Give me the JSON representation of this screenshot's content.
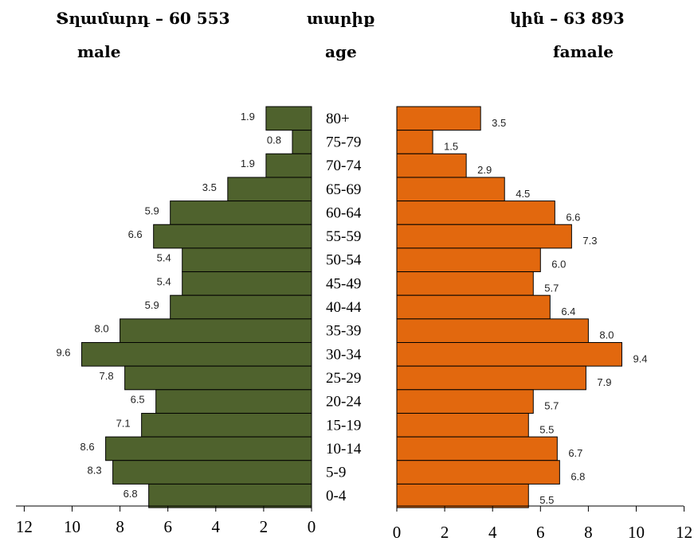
{
  "header": {
    "male_title": "Տղամարդ – 60 553",
    "age_title": "տարիք",
    "female_title": "կին – 63 893",
    "male_label": "male",
    "age_label": "age",
    "female_label": "famale"
  },
  "colors": {
    "male": "#4f622d",
    "female": "#e2680e"
  },
  "chart_data": {
    "type": "bar",
    "orientation": "horizontal",
    "categories": [
      "80+",
      "75-79",
      "70-74",
      "65-69",
      "60-64",
      "55-59",
      "50-54",
      "45-49",
      "40-44",
      "35-39",
      "30-34",
      "25-29",
      "20-24",
      "15-19",
      "10-14",
      "5-9",
      "0-4"
    ],
    "series": [
      {
        "name": "male",
        "values": [
          1.9,
          0.8,
          1.9,
          3.5,
          5.9,
          6.6,
          5.4,
          5.4,
          5.9,
          8.0,
          9.6,
          7.8,
          6.5,
          7.1,
          8.6,
          8.3,
          6.8
        ],
        "labels": [
          "1.9",
          "0.8",
          "1.9",
          "3.5",
          "5.9",
          "6.6",
          "5.4",
          "5.4",
          "5.9",
          "8.0",
          "9.6",
          "7.8",
          "6.5",
          "7.1",
          "8.6",
          "8.3",
          "6.8"
        ]
      },
      {
        "name": "famale",
        "values": [
          3.5,
          1.5,
          2.9,
          4.5,
          6.6,
          7.3,
          6.0,
          5.7,
          6.4,
          8.0,
          9.4,
          7.9,
          5.7,
          5.5,
          6.7,
          6.8,
          5.5
        ],
        "labels": [
          "3.5",
          "1.5",
          "2.9",
          "4.5",
          "6.6",
          "7.3",
          "6.0",
          "5.7",
          "6.4",
          "8.0",
          "9.4",
          "7.9",
          "5.7",
          "5.5",
          "6.7",
          "6.8",
          "5.5"
        ]
      }
    ],
    "xlim": [
      0,
      12
    ],
    "ticks": [
      "0",
      "2",
      "4",
      "6",
      "8",
      "10",
      "12"
    ],
    "grid": false
  }
}
